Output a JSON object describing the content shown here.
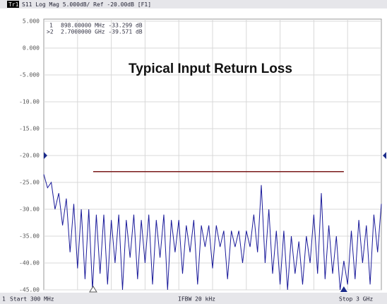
{
  "header": {
    "trace": "Tr1",
    "text": "S11 Log Mag 5.000dB/ Ref -20.00dB [F1]"
  },
  "markers": [
    {
      "id": "1",
      "text": "898.00000 MHz -33.299 dB"
    },
    {
      "id": ">2",
      "text": "2.7000000 GHz -39.571 dB"
    }
  ],
  "footer": {
    "channel": "1",
    "start": "Start 300 MHz",
    "ifbw": "IFBW 20 kHz",
    "stop": "Stop 3 GHz"
  },
  "chart_data": {
    "type": "line",
    "title": "Typical Input Return Loss",
    "xlim": [
      300,
      3000
    ],
    "ylim": [
      -45,
      5
    ],
    "yticks": [
      {
        "value": 5,
        "label": "5.000"
      },
      {
        "value": 0,
        "label": "0.000"
      },
      {
        "value": -5,
        "label": "-5.000"
      },
      {
        "value": -10,
        "label": "-10.00"
      },
      {
        "value": -15,
        "label": "-15.00"
      },
      {
        "value": -20,
        "label": "-20.00"
      },
      {
        "value": -25,
        "label": "-25.00"
      },
      {
        "value": -30,
        "label": "-30.00"
      },
      {
        "value": -35,
        "label": "-35.00"
      },
      {
        "value": -40,
        "label": "-40.00"
      },
      {
        "value": -45,
        "label": "-45.00"
      }
    ],
    "grid": true,
    "reference": -20,
    "limit_line": {
      "x": [
        695,
        2700
      ],
      "value": -23,
      "color": "#7a1a1a"
    },
    "series": [
      {
        "name": "S11",
        "color": "#1a1a9a",
        "x": [
          300,
          330,
          360,
          390,
          420,
          450,
          480,
          510,
          540,
          570,
          600,
          630,
          660,
          690,
          720,
          750,
          780,
          810,
          840,
          870,
          900,
          930,
          960,
          990,
          1020,
          1050,
          1080,
          1110,
          1140,
          1170,
          1200,
          1230,
          1260,
          1290,
          1320,
          1350,
          1380,
          1410,
          1440,
          1470,
          1500,
          1530,
          1560,
          1590,
          1620,
          1650,
          1680,
          1710,
          1740,
          1770,
          1800,
          1830,
          1860,
          1890,
          1920,
          1950,
          1980,
          2010,
          2040,
          2070,
          2100,
          2130,
          2160,
          2190,
          2220,
          2250,
          2280,
          2310,
          2340,
          2370,
          2400,
          2430,
          2460,
          2490,
          2520,
          2550,
          2580,
          2610,
          2640,
          2670,
          2700,
          2730,
          2760,
          2790,
          2820,
          2850,
          2880,
          2910,
          2940,
          2970,
          3000
        ],
        "values": [
          -23.5,
          -26,
          -25,
          -30,
          -27,
          -33,
          -28,
          -38,
          -29,
          -41,
          -30,
          -43,
          -30,
          -45,
          -31,
          -42,
          -31,
          -44,
          -32,
          -40,
          -31,
          -45,
          -32,
          -39,
          -31,
          -43,
          -32,
          -40,
          -31,
          -44,
          -32,
          -39,
          -31,
          -45,
          -32,
          -38,
          -32,
          -42,
          -33,
          -38,
          -32,
          -44,
          -33,
          -37,
          -33,
          -41,
          -33,
          -37,
          -34,
          -43,
          -34,
          -37,
          -34,
          -40,
          -34,
          -37,
          -31,
          -38,
          -25.5,
          -40,
          -30,
          -42,
          -34,
          -44,
          -34,
          -45,
          -35,
          -42,
          -36,
          -44,
          -35,
          -40,
          -31,
          -42,
          -27,
          -43,
          -33,
          -42,
          -35,
          -45,
          -39.6,
          -44,
          -34,
          -43,
          -32,
          -40,
          -33,
          -44,
          -31,
          -38,
          -29
        ]
      }
    ]
  }
}
